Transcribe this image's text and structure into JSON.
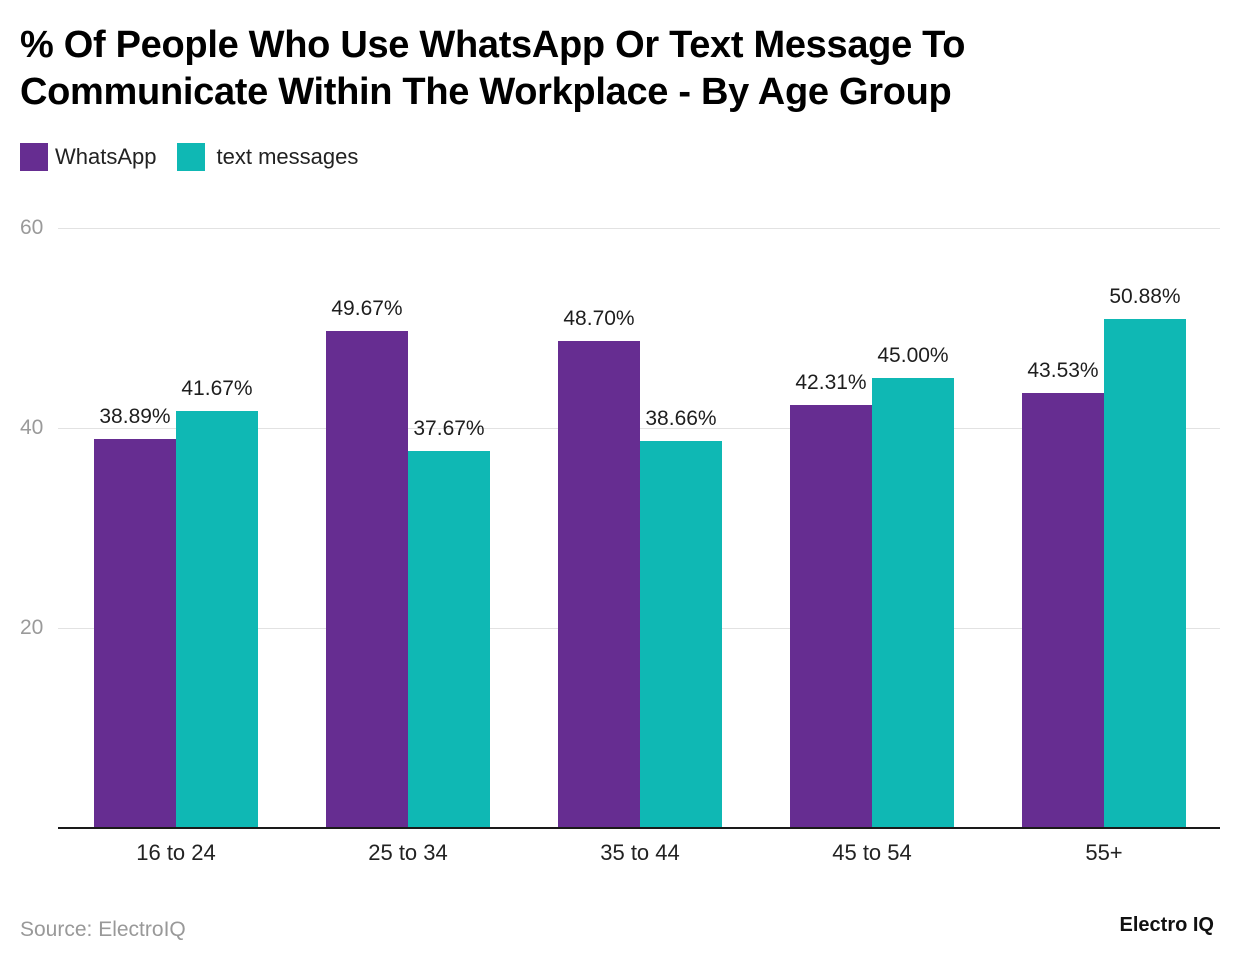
{
  "header": {
    "title_line1": "% Of People Who Use WhatsApp Or Text Message To",
    "title_line2": "Communicate Within The Workplace - By Age Group"
  },
  "legend": {
    "items": [
      {
        "label": "WhatsApp",
        "color": "#662d91"
      },
      {
        "label": "text messages",
        "color": "#0fb8b4"
      }
    ]
  },
  "y_axis": {
    "ticks": [
      "20",
      "40",
      "60"
    ]
  },
  "x_axis": {
    "categories": [
      "16 to 24",
      "25 to 34",
      "35 to 44",
      "45 to 54",
      "55+"
    ]
  },
  "labels": {
    "whatsapp": [
      "38.89%",
      "49.67%",
      "48.70%",
      "42.31%",
      "43.53%"
    ],
    "text": [
      "41.67%",
      "37.67%",
      "38.66%",
      "45.00%",
      "50.88%"
    ]
  },
  "footer": {
    "source": "Source: ElectroIQ",
    "brand": "Electro IQ"
  },
  "chart_data": {
    "type": "bar",
    "title": "% Of People Who Use WhatsApp Or Text Message To Communicate Within The Workplace - By Age Group",
    "categories": [
      "16 to 24",
      "25 to 34",
      "35 to 44",
      "45 to 54",
      "55+"
    ],
    "series": [
      {
        "name": "WhatsApp",
        "color": "#662d91",
        "values": [
          38.89,
          49.67,
          48.7,
          42.31,
          43.53
        ]
      },
      {
        "name": "text messages",
        "color": "#0fb8b4",
        "values": [
          41.67,
          37.67,
          38.66,
          45.0,
          50.88
        ]
      }
    ],
    "xlabel": "",
    "ylabel": "",
    "ylim": [
      0,
      60
    ],
    "yticks": [
      20,
      40,
      60
    ],
    "grid": true,
    "legend_position": "top-left",
    "data_labels": true,
    "source": "Source: ElectroIQ"
  }
}
